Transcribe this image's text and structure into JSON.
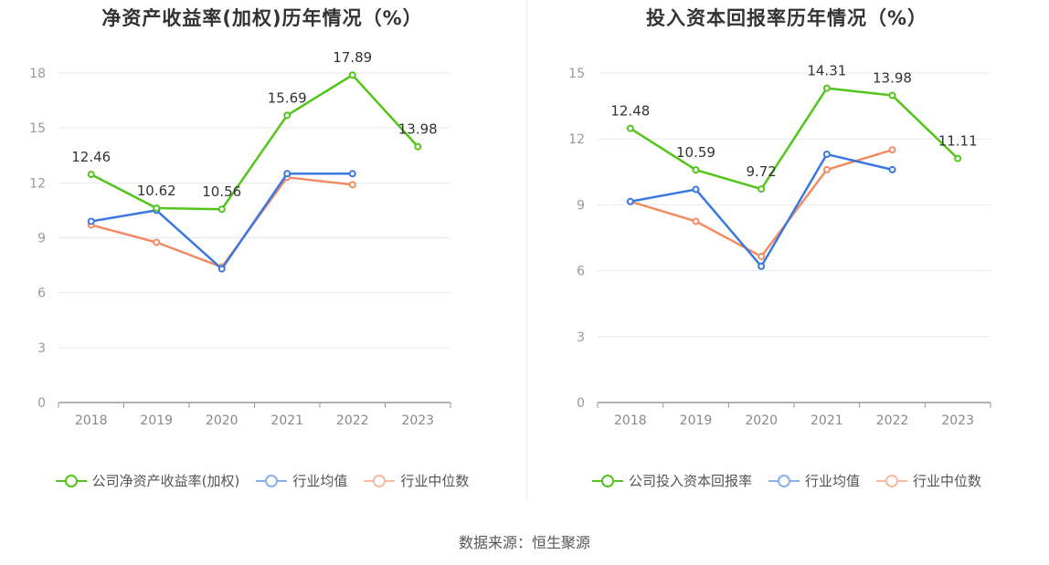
{
  "chart_data": [
    {
      "type": "line",
      "title": "净资产收益率(加权)历年情况（%）",
      "categories": [
        "2018",
        "2019",
        "2020",
        "2021",
        "2022",
        "2023"
      ],
      "ylim": [
        0,
        18
      ],
      "yticks": [
        0,
        3,
        6,
        9,
        12,
        15,
        18
      ],
      "grid": true,
      "legend_position": "bottom",
      "series": [
        {
          "name": "公司净资产收益率(加权)",
          "color": "#52c41a",
          "labeled": true,
          "values": [
            12.46,
            10.62,
            10.56,
            15.69,
            17.89,
            13.98
          ],
          "labels": [
            "12.46",
            "10.62",
            "10.56",
            "15.69",
            "17.89",
            "13.98"
          ]
        },
        {
          "name": "行业均值",
          "color": "#3a78e0",
          "labeled": false,
          "values": [
            9.9,
            10.5,
            7.3,
            12.5,
            12.5,
            null
          ]
        },
        {
          "name": "行业中位数",
          "color": "#f28b63",
          "labeled": false,
          "values": [
            9.7,
            8.75,
            7.4,
            12.3,
            11.9,
            null
          ]
        }
      ]
    },
    {
      "type": "line",
      "title": "投入资本回报率历年情况（%）",
      "categories": [
        "2018",
        "2019",
        "2020",
        "2021",
        "2022",
        "2023"
      ],
      "ylim": [
        0,
        15
      ],
      "yticks": [
        0,
        3,
        6,
        9,
        12,
        15
      ],
      "grid": true,
      "legend_position": "bottom",
      "series": [
        {
          "name": "公司投入资本回报率",
          "color": "#52c41a",
          "labeled": true,
          "values": [
            12.48,
            10.59,
            9.72,
            14.31,
            13.98,
            11.11
          ],
          "labels": [
            "12.48",
            "10.59",
            "9.72",
            "14.31",
            "13.98",
            "11.11"
          ]
        },
        {
          "name": "行业均值",
          "color": "#3a78e0",
          "labeled": false,
          "values": [
            9.15,
            9.7,
            6.2,
            11.3,
            10.6,
            null
          ]
        },
        {
          "name": "行业中位数",
          "color": "#f28b63",
          "labeled": false,
          "values": [
            9.15,
            8.25,
            6.65,
            10.6,
            11.5,
            null
          ]
        }
      ]
    }
  ],
  "source_text": "数据来源：恒生聚源"
}
